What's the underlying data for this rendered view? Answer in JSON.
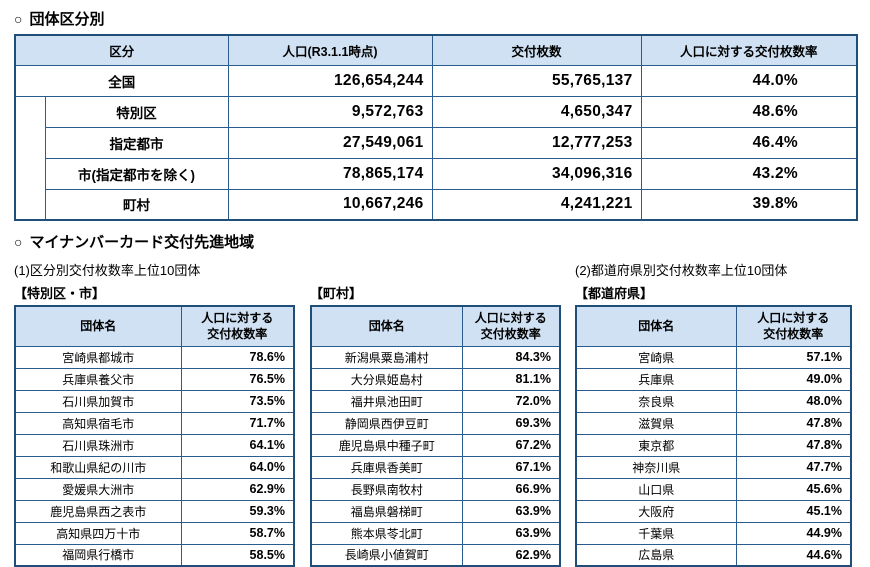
{
  "colors": {
    "border": "#1f4e79",
    "border_light": "#2b5c8e",
    "header_bg": "#cfe1f2"
  },
  "page": {
    "marker": "○",
    "section1_title": "団体区分別",
    "section2_title": "マイナンバーカード交付先進地域",
    "sub1_title": "(1)区分別交付枚数率上位10団体",
    "sub2_title": "(2)都道府県別交付枚数率上位10団体"
  },
  "main_table": {
    "headers": [
      "区分",
      "人口(R3.1.1時点)",
      "交付枚数",
      "人口に対する交付枚数率"
    ],
    "rows": [
      {
        "category": "全国",
        "population": "126,654,244",
        "issued": "55,765,137",
        "rate": "44.0%"
      },
      {
        "category": "特別区",
        "population": "9,572,763",
        "issued": "4,650,347",
        "rate": "48.6%"
      },
      {
        "category": "指定都市",
        "population": "27,549,061",
        "issued": "12,777,253",
        "rate": "46.4%"
      },
      {
        "category": "市(指定都市を除く)",
        "population": "78,865,174",
        "issued": "34,096,316",
        "rate": "43.2%"
      },
      {
        "category": "町村",
        "population": "10,667,246",
        "issued": "4,241,221",
        "rate": "39.8%"
      }
    ]
  },
  "ranking": {
    "headers": [
      "団体名",
      "人口に対する\n交付枚数率"
    ],
    "tables": [
      {
        "label": "【特別区・市】",
        "rows": [
          [
            "宮崎県都城市",
            "78.6%"
          ],
          [
            "兵庫県養父市",
            "76.5%"
          ],
          [
            "石川県加賀市",
            "73.5%"
          ],
          [
            "高知県宿毛市",
            "71.7%"
          ],
          [
            "石川県珠洲市",
            "64.1%"
          ],
          [
            "和歌山県紀の川市",
            "64.0%"
          ],
          [
            "愛媛県大洲市",
            "62.9%"
          ],
          [
            "鹿児島県西之表市",
            "59.3%"
          ],
          [
            "高知県四万十市",
            "58.7%"
          ],
          [
            "福岡県行橋市",
            "58.5%"
          ]
        ]
      },
      {
        "label": "【町村】",
        "rows": [
          [
            "新潟県粟島浦村",
            "84.3%"
          ],
          [
            "大分県姫島村",
            "81.1%"
          ],
          [
            "福井県池田町",
            "72.0%"
          ],
          [
            "静岡県西伊豆町",
            "69.3%"
          ],
          [
            "鹿児島県中種子町",
            "67.2%"
          ],
          [
            "兵庫県香美町",
            "67.1%"
          ],
          [
            "長野県南牧村",
            "66.9%"
          ],
          [
            "福島県磐梯町",
            "63.9%"
          ],
          [
            "熊本県苓北町",
            "63.9%"
          ],
          [
            "長崎県小値賀町",
            "62.9%"
          ]
        ]
      },
      {
        "label": "【都道府県】",
        "rows": [
          [
            "宮崎県",
            "57.1%"
          ],
          [
            "兵庫県",
            "49.0%"
          ],
          [
            "奈良県",
            "48.0%"
          ],
          [
            "滋賀県",
            "47.8%"
          ],
          [
            "東京都",
            "47.8%"
          ],
          [
            "神奈川県",
            "47.7%"
          ],
          [
            "山口県",
            "45.6%"
          ],
          [
            "大阪府",
            "45.1%"
          ],
          [
            "千葉県",
            "44.9%"
          ],
          [
            "広島県",
            "44.6%"
          ]
        ]
      }
    ]
  }
}
